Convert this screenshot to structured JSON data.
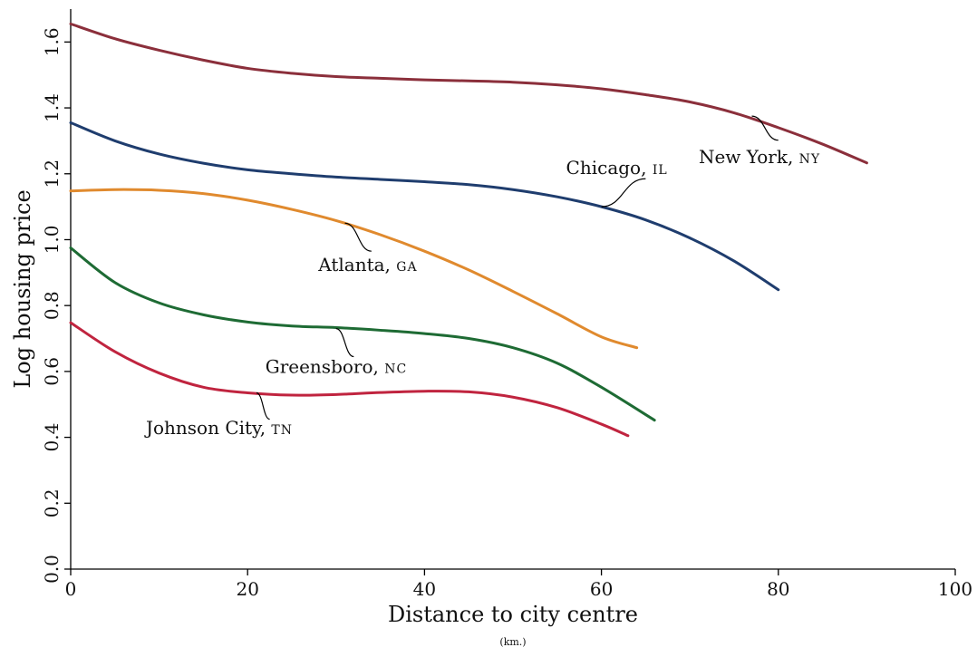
{
  "chart_data": {
    "type": "line",
    "title": "",
    "xlabel": "Distance to city centre",
    "xlabel_sub": "(km.)",
    "ylabel": "Log housing price",
    "xlim": [
      0,
      100
    ],
    "ylim": [
      0,
      1.7
    ],
    "xticks": [
      0,
      20,
      40,
      60,
      80,
      100
    ],
    "xtick_labels": [
      "0",
      "20",
      "40",
      "60",
      "80",
      "100"
    ],
    "yticks": [
      0,
      0.2,
      0.4,
      0.6,
      0.8,
      1.0,
      1.2,
      1.4,
      1.6
    ],
    "ytick_labels": [
      "0.0",
      "0.2",
      "0.4",
      "0.6",
      "0.8",
      "1.0",
      "1.2",
      "1.4",
      "1.6"
    ],
    "grid": false,
    "legend": "none",
    "series": [
      {
        "name": "New York, NY",
        "label_main": "New York, ",
        "label_abbr": "NY",
        "color": "#8B2F3B",
        "x": [
          0,
          5,
          10,
          15,
          20,
          25,
          30,
          35,
          40,
          45,
          50,
          55,
          60,
          65,
          70,
          75,
          80,
          85,
          90
        ],
        "y": [
          1.655,
          1.61,
          1.575,
          1.545,
          1.52,
          1.505,
          1.495,
          1.49,
          1.485,
          1.482,
          1.478,
          1.47,
          1.458,
          1.44,
          1.418,
          1.385,
          1.34,
          1.29,
          1.233
        ]
      },
      {
        "name": "Chicago, IL",
        "label_main": "Chicago, ",
        "label_abbr": "IL",
        "color": "#1F3D6E",
        "x": [
          0,
          5,
          10,
          15,
          20,
          25,
          30,
          35,
          40,
          45,
          50,
          55,
          60,
          65,
          70,
          75,
          80
        ],
        "y": [
          1.355,
          1.3,
          1.26,
          1.232,
          1.212,
          1.2,
          1.19,
          1.183,
          1.176,
          1.167,
          1.152,
          1.13,
          1.1,
          1.06,
          1.005,
          0.935,
          0.848
        ]
      },
      {
        "name": "Atlanta, GA",
        "label_main": "Atlanta, ",
        "label_abbr": "GA",
        "color": "#E08A2E",
        "x": [
          0,
          5,
          10,
          15,
          20,
          25,
          30,
          35,
          40,
          45,
          50,
          55,
          60,
          64
        ],
        "y": [
          1.148,
          1.152,
          1.15,
          1.14,
          1.12,
          1.092,
          1.058,
          1.015,
          0.965,
          0.908,
          0.843,
          0.775,
          0.705,
          0.672
        ]
      },
      {
        "name": "Greensboro, NC",
        "label_main": "Greensboro, ",
        "label_abbr": "NC",
        "color": "#1E6B34",
        "x": [
          0,
          5,
          10,
          15,
          20,
          25,
          30,
          35,
          40,
          45,
          50,
          55,
          60,
          66
        ],
        "y": [
          0.975,
          0.87,
          0.808,
          0.772,
          0.75,
          0.738,
          0.733,
          0.725,
          0.715,
          0.7,
          0.672,
          0.625,
          0.552,
          0.452
        ]
      },
      {
        "name": "Johnson City, TN",
        "label_main": "Johnson City, ",
        "label_abbr": "TN",
        "color": "#C0243F",
        "x": [
          0,
          5,
          10,
          15,
          20,
          25,
          30,
          35,
          40,
          45,
          50,
          55,
          60,
          63
        ],
        "y": [
          0.748,
          0.66,
          0.595,
          0.552,
          0.535,
          0.528,
          0.53,
          0.536,
          0.54,
          0.538,
          0.522,
          0.49,
          0.44,
          0.405
        ]
      }
    ],
    "annotations": [
      {
        "series": 0,
        "text_x": 71,
        "text_y": 1.232,
        "lx": [
          77,
          80
        ],
        "ly": [
          1.375,
          1.302
        ]
      },
      {
        "series": 1,
        "text_x": 56,
        "text_y": 1.2,
        "lx": [
          60,
          65
        ],
        "ly": [
          1.1,
          1.185
        ]
      },
      {
        "series": 2,
        "text_x": 28,
        "text_y": 0.905,
        "lx": [
          31,
          34
        ],
        "ly": [
          1.05,
          0.965
        ]
      },
      {
        "series": 3,
        "text_x": 22,
        "text_y": 0.595,
        "lx": [
          30,
          32
        ],
        "ly": [
          0.73,
          0.645
        ]
      },
      {
        "series": 4,
        "text_x": 8.5,
        "text_y": 0.41,
        "lx": [
          21,
          22.5
        ],
        "ly": [
          0.535,
          0.455
        ]
      }
    ]
  }
}
